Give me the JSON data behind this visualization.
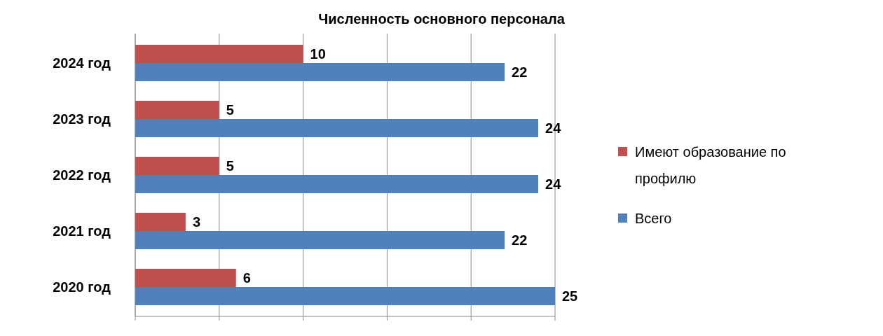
{
  "chart_data": {
    "type": "bar",
    "orientation": "horizontal",
    "title": "Численность основного персонала",
    "categories": [
      "2024 год",
      "2023 год",
      "2022 год",
      "2021 год",
      "2020 год"
    ],
    "series": [
      {
        "name": "Имеют образование по профилю",
        "color": "#c0504d",
        "values": [
          10,
          5,
          5,
          3,
          6
        ]
      },
      {
        "name": "Всего",
        "color": "#4f81bd",
        "values": [
          22,
          24,
          24,
          22,
          25
        ]
      }
    ],
    "xlim": [
      0,
      25
    ],
    "xticks": [
      {
        "value": 0,
        "label": null
      },
      {
        "value": 5,
        "label": null
      },
      {
        "value": 10,
        "label": null
      },
      {
        "value": 15,
        "label": null
      },
      {
        "value": 20,
        "label": null
      },
      {
        "value": 25,
        "label": null
      }
    ],
    "tick_labels": "y",
    "grid": "x",
    "legend": "right",
    "data_labels": true
  }
}
